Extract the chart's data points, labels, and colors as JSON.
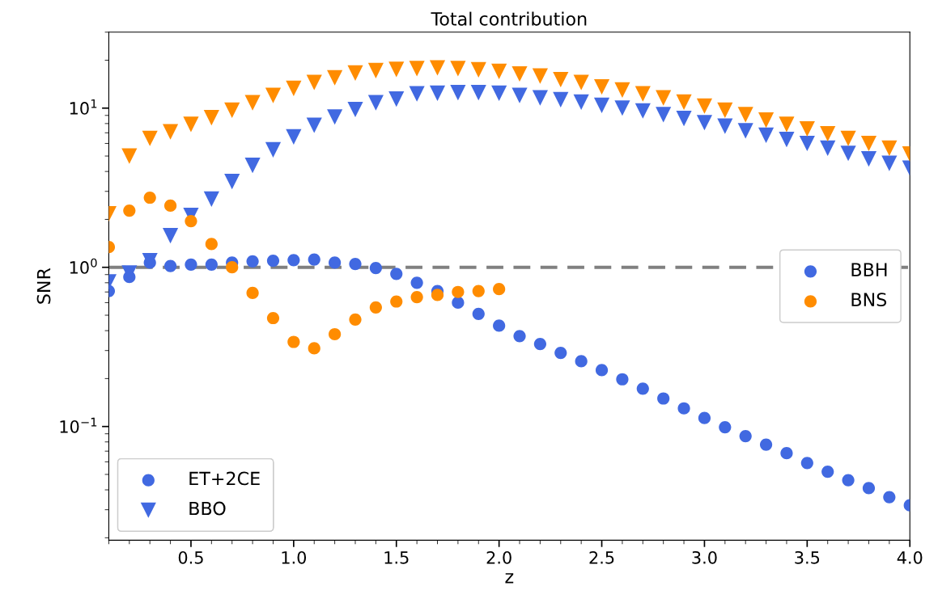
{
  "chart_data": {
    "type": "scatter",
    "title": "Total contribution",
    "xlabel": "z",
    "ylabel": "SNR",
    "log": "y",
    "x": [
      0.1,
      0.2,
      0.3,
      0.4,
      0.5,
      0.6,
      0.7,
      0.8,
      0.9,
      1.0,
      1.1,
      1.2,
      1.3,
      1.4,
      1.5,
      1.6,
      1.7,
      1.8,
      1.9,
      2.0,
      2.1,
      2.2,
      2.3,
      2.4,
      2.5,
      2.6,
      2.7,
      2.8,
      2.9,
      3.0,
      3.1,
      3.2,
      3.3,
      3.4,
      3.5,
      3.6,
      3.7,
      3.8,
      3.9,
      4.0
    ],
    "xlim": [
      0.1,
      4.0
    ],
    "xticks": [
      0.5,
      {
        "value": 1,
        "label": "1.0"
      },
      1.5,
      {
        "value": 2,
        "label": "2.0"
      },
      2.5,
      {
        "value": 3,
        "label": "3.0"
      },
      3.5,
      {
        "value": 4,
        "label": "4.0"
      }
    ],
    "ylim": [
      0.0193,
      30
    ],
    "yticks": [
      {
        "value": 0.1,
        "label": "10$^{−1}$"
      },
      {
        "value": 1,
        "label": "10$^{0}$"
      },
      {
        "value": 10,
        "label": "10$^{1}$"
      }
    ],
    "ref_lines": [
      {
        "axis": "y",
        "value": 1,
        "color": "#808080",
        "line_style": "dashed"
      }
    ],
    "grid": false,
    "legend": [
      "lower left",
      "center right"
    ],
    "annotations": [
      "BBH"
    ],
    "series": [
      {
        "name": "ET+2CE",
        "marker": "circle",
        "color": "#4169e1",
        "values": [
          0.71,
          0.87,
          1.07,
          1.02,
          1.04,
          1.04,
          1.07,
          1.09,
          1.1,
          1.11,
          1.12,
          1.07,
          1.05,
          0.99,
          0.91,
          0.8,
          0.71,
          0.6,
          0.51,
          0.43,
          0.37,
          0.33,
          0.29,
          0.257,
          0.226,
          0.198,
          0.173,
          0.15,
          0.13,
          0.113,
          0.099,
          0.087,
          0.077,
          0.068,
          0.059,
          0.052,
          0.046,
          0.041,
          0.036,
          0.032
        ]
      },
      {
        "name": "BBO",
        "marker": "triangle",
        "color": "#4169e1",
        "values": [
          0.81,
          0.92,
          1.1,
          1.58,
          2.12,
          2.68,
          3.46,
          4.37,
          5.47,
          6.6,
          7.8,
          8.8,
          9.8,
          10.8,
          11.4,
          12.3,
          12.4,
          12.5,
          12.5,
          12.4,
          12.0,
          11.6,
          11.3,
          10.9,
          10.4,
          10.0,
          9.6,
          9.1,
          8.6,
          8.1,
          7.7,
          7.2,
          6.75,
          6.35,
          6.0,
          5.6,
          5.2,
          4.8,
          4.5,
          4.2
        ]
      },
      {
        "name": "BNS",
        "marker": "circle",
        "color": "#ff8c00",
        "values": [
          1.34,
          2.27,
          2.74,
          2.44,
          1.95,
          1.4,
          1.0,
          0.69,
          0.48,
          0.34,
          0.31,
          0.38,
          0.47,
          0.56,
          0.61,
          0.65,
          0.67,
          0.7,
          0.71,
          0.73,
          null,
          null,
          null,
          null,
          null,
          null,
          null,
          null,
          null,
          null,
          null,
          null,
          null,
          null,
          null,
          null,
          null,
          null,
          null,
          null
        ]
      },
      {
        "marker": "triangle",
        "color": "#ff8c00",
        "values": [
          2.17,
          5.0,
          6.45,
          7.1,
          7.9,
          8.7,
          9.7,
          10.8,
          12.0,
          13.3,
          14.5,
          15.5,
          16.6,
          17.2,
          17.5,
          17.7,
          17.9,
          17.7,
          17.4,
          17.0,
          16.4,
          15.9,
          15.1,
          14.5,
          13.6,
          13.0,
          12.3,
          11.6,
          10.9,
          10.3,
          9.7,
          9.1,
          8.4,
          7.9,
          7.4,
          6.9,
          6.45,
          6.0,
          5.6,
          5.15
        ]
      }
    ]
  }
}
